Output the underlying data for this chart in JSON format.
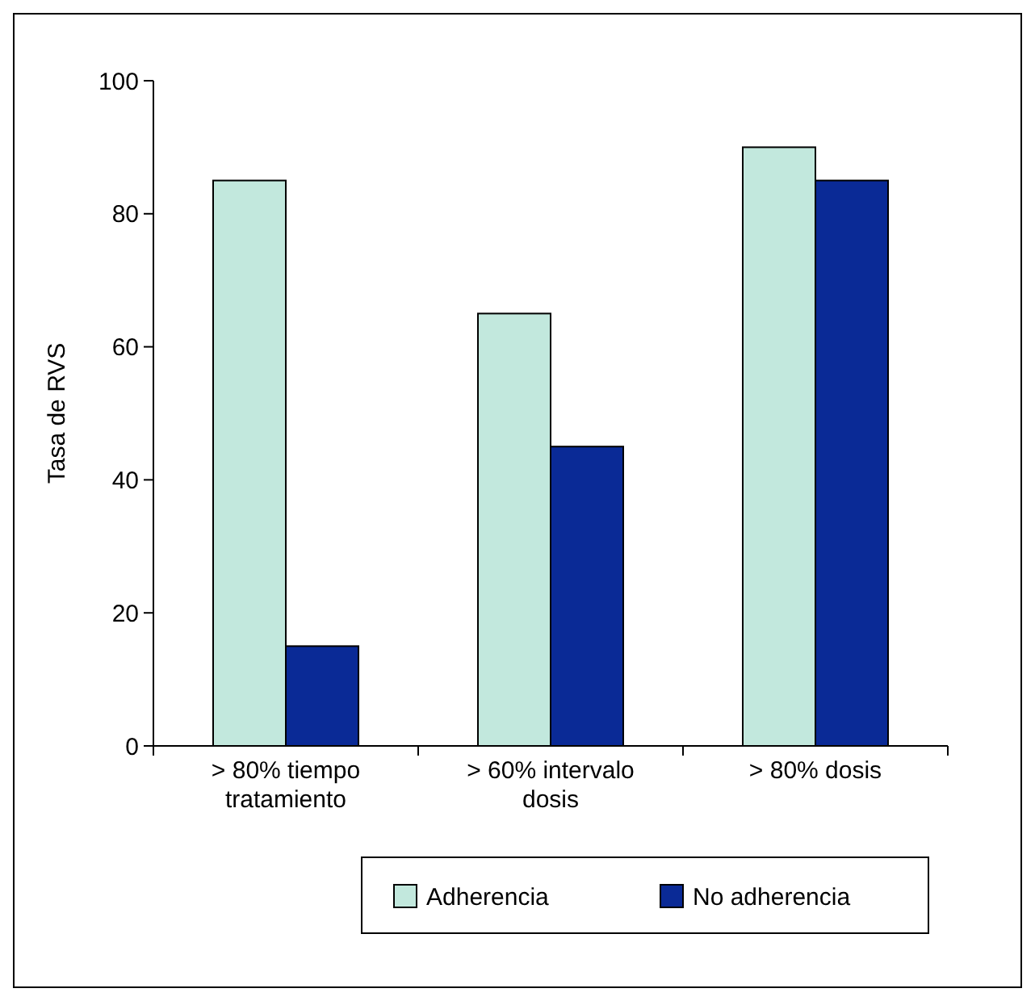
{
  "chart_data": {
    "type": "bar",
    "ylabel": "Tasa de RVS",
    "categories": [
      "> 80% tiempo tratamiento",
      "> 60% intervalo dosis",
      "> 80% dosis"
    ],
    "series": [
      {
        "name": "Adherencia",
        "color": "#c2e8dd",
        "values": [
          85,
          65,
          90
        ]
      },
      {
        "name": "No adherencia",
        "color": "#0a2a96",
        "values": [
          15,
          45,
          85
        ]
      }
    ],
    "ylim": [
      0,
      100
    ],
    "yticks": [
      0,
      20,
      40,
      60,
      80,
      100
    ],
    "grid": false,
    "legend": "bottom"
  }
}
